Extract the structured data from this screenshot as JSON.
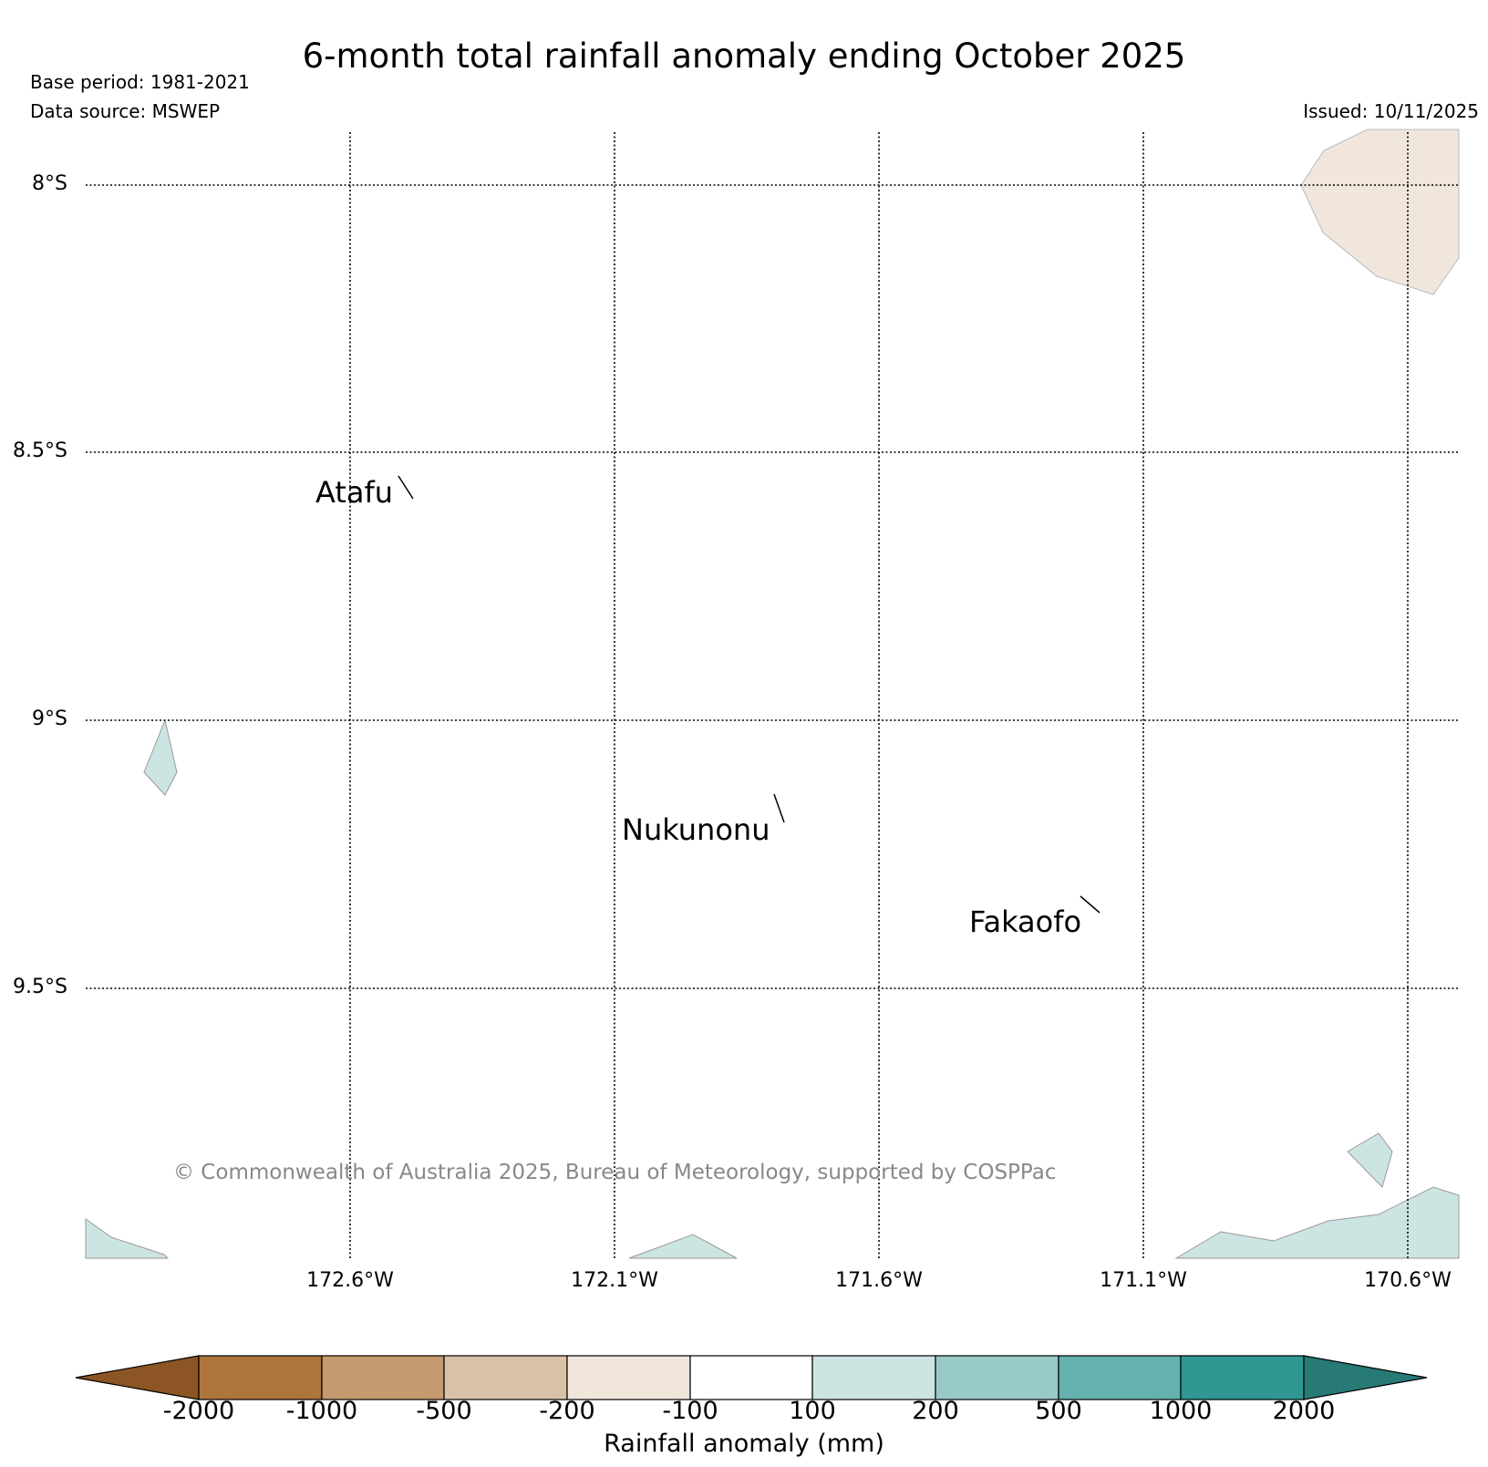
{
  "title": "6-month total rainfall anomaly ending October 2025",
  "base_period": "Base period: 1981-2021",
  "data_source": "Data source: MSWEP",
  "issued": "Issued: 10/11/2025",
  "copyright": "© Commonwealth of Australia 2025, Bureau of Meteorology, supported by COSPPac",
  "map": {
    "lat_labels": [
      "8°S",
      "8.5°S",
      "9°S",
      "9.5°S"
    ],
    "lon_labels": [
      "172.6°W",
      "172.1°W",
      "171.6°W",
      "171.1°W",
      "170.6°W"
    ],
    "places": [
      "Atafu",
      "Nukunonu",
      "Fakaofo"
    ]
  },
  "colorbar": {
    "label": "Rainfall anomaly (mm)",
    "ticks": [
      "-2000",
      "-1000",
      "-500",
      "-200",
      "-100",
      "100",
      "200",
      "500",
      "1000",
      "2000"
    ],
    "colors": [
      "#8c5523",
      "#ad743c",
      "#c49a6f",
      "#dac2a8",
      "#f0e6dc",
      "#ffffff",
      "#cce5e3",
      "#98cbc8",
      "#64b1ae",
      "#2f9893",
      "#277a76"
    ]
  }
}
